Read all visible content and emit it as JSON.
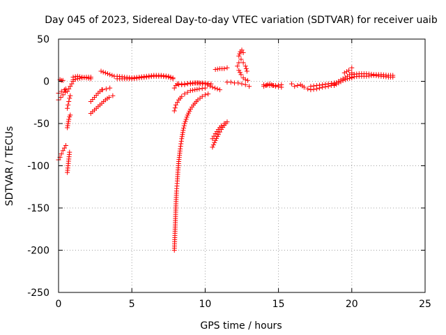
{
  "chart_data": {
    "type": "scatter",
    "title": "Day 045 of 2023, Sidereal Day-to-day VTEC variation (SDTVAR) for receiver uaib",
    "xlabel": "GPS time / hours",
    "ylabel": "SDTVAR / TECUs",
    "xlim": [
      0,
      25
    ],
    "ylim": [
      -250,
      50
    ],
    "xticks": [
      0,
      5,
      10,
      15,
      20,
      25
    ],
    "yticks": [
      -250,
      -200,
      -150,
      -100,
      -50,
      0,
      50
    ],
    "grid": true,
    "marker": "+",
    "color": "#ff0000",
    "series": [
      {
        "name": "SDTVAR",
        "segments": [
          {
            "x": [
              0.0,
              0.1,
              0.2,
              0.3,
              0.4,
              0.5
            ],
            "y": [
              -93,
              -90,
              -86,
              -82,
              -79,
              -76
            ]
          },
          {
            "x": [
              0.0,
              0.15,
              0.3,
              0.45
            ],
            "y": [
              -22,
              -19,
              -16,
              -13
            ]
          },
          {
            "x": [
              0.0,
              0.2,
              0.4,
              0.5
            ],
            "y": [
              -14,
              -12,
              -10,
              -9
            ]
          },
          {
            "x": [
              0.1,
              0.2,
              0.3
            ],
            "y": [
              2,
              1,
              1
            ]
          },
          {
            "x": [
              0.6,
              0.65,
              0.7,
              0.75
            ],
            "y": [
              -108,
              -100,
              -92,
              -84
            ]
          },
          {
            "x": [
              0.6,
              0.65,
              0.7,
              0.75,
              0.8
            ],
            "y": [
              -55,
              -50,
              -45,
              -42,
              -40
            ]
          },
          {
            "x": [
              0.6,
              0.65,
              0.7,
              0.75,
              0.8
            ],
            "y": [
              -32,
              -28,
              -24,
              -20,
              -17
            ]
          },
          {
            "x": [
              0.6,
              0.7,
              0.8,
              0.9,
              1.0
            ],
            "y": [
              -12,
              -9,
              -6,
              -3,
              0
            ]
          },
          {
            "x": [
              1.0,
              1.3,
              1.6,
              1.9,
              2.2
            ],
            "y": [
              2,
              3,
              4,
              5,
              5
            ]
          },
          {
            "x": [
              1.0,
              1.3,
              1.6,
              1.9,
              2.2
            ],
            "y": [
              5,
              6,
              5,
              4,
              3
            ]
          },
          {
            "x": [
              2.2,
              2.45,
              2.7,
              2.95,
              3.2,
              3.45,
              3.7
            ],
            "y": [
              -38,
              -34,
              -30,
              -26,
              -22,
              -19,
              -17
            ]
          },
          {
            "x": [
              2.2,
              2.45,
              2.7,
              2.95
            ],
            "y": [
              -24,
              -19,
              -14,
              -10
            ]
          },
          {
            "x": [
              2.9,
              3.2,
              3.5,
              3.8
            ],
            "y": [
              12,
              10,
              8,
              6
            ]
          },
          {
            "x": [
              3.0,
              3.25,
              3.5
            ],
            "y": [
              -10,
              -9,
              -8
            ]
          },
          {
            "x": [
              4.0,
              4.5,
              5.0,
              5.5,
              6.0,
              6.5,
              7.0,
              7.5,
              7.8
            ],
            "y": [
              3,
              3,
              3,
              4,
              5,
              6,
              6,
              5,
              3
            ]
          },
          {
            "x": [
              4.0,
              4.5,
              5.0,
              5.5,
              6.0,
              6.5,
              7.0,
              7.5,
              7.8
            ],
            "y": [
              6,
              5,
              4,
              5,
              6,
              7,
              7,
              6,
              4
            ]
          },
          {
            "x": [
              7.9,
              7.92,
              7.95,
              7.98,
              8.0,
              8.02,
              8.05,
              8.1,
              8.15,
              8.2,
              8.3,
              8.4,
              8.5,
              8.6,
              8.8,
              9.0,
              9.2,
              9.5,
              9.8,
              10.0,
              10.2
            ],
            "y": [
              -200,
              -190,
              -175,
              -160,
              -150,
              -140,
              -130,
              -118,
              -105,
              -95,
              -80,
              -68,
              -58,
              -50,
              -40,
              -33,
              -28,
              -22,
              -18,
              -16,
              -15
            ]
          },
          {
            "x": [
              7.9,
              8.0,
              8.2,
              8.4,
              8.6,
              8.8,
              9.0,
              9.3,
              9.6,
              10.0
            ],
            "y": [
              -35,
              -28,
              -22,
              -18,
              -15,
              -13,
              -11,
              -10,
              -9,
              -8
            ]
          },
          {
            "x": [
              7.9,
              8.0,
              8.1,
              8.2,
              8.4,
              8.6,
              8.8,
              9.0,
              9.3,
              9.6,
              10.0,
              10.4
            ],
            "y": [
              -8,
              -5,
              -3,
              -3,
              -4,
              -4,
              -3,
              -3,
              -2,
              -2,
              -2,
              -3
            ]
          },
          {
            "x": [
              8.2,
              8.6,
              9.0,
              9.5,
              10.0,
              10.5,
              11.0
            ],
            "y": [
              -4,
              -3,
              -2,
              -2,
              -3,
              -7,
              -10
            ]
          },
          {
            "x": [
              10.5,
              10.7,
              10.9,
              11.1,
              11.3,
              11.5
            ],
            "y": [
              -78,
              -70,
              -63,
              -57,
              -52,
              -48
            ]
          },
          {
            "x": [
              10.5,
              10.7,
              10.9,
              11.1,
              11.3
            ],
            "y": [
              -68,
              -62,
              -57,
              -53,
              -50
            ]
          },
          {
            "x": [
              10.7,
              11.0,
              11.3,
              11.5
            ],
            "y": [
              14,
              15,
              15,
              16
            ]
          },
          {
            "x": [
              11.5,
              11.75,
              12.0,
              12.25,
              12.5,
              12.75,
              13.0
            ],
            "y": [
              -1,
              -1,
              -2,
              -2,
              -3,
              -4,
              -6
            ]
          },
          {
            "x": [
              12.2,
              12.3,
              12.45,
              12.6,
              12.75,
              12.85
            ],
            "y": [
              18,
              22,
              26,
              22,
              18,
              12
            ]
          },
          {
            "x": [
              12.3,
              12.4,
              12.5,
              12.6
            ],
            "y": [
              30,
              35,
              37,
              34
            ]
          },
          {
            "x": [
              12.3,
              12.45,
              12.6,
              12.75,
              12.9
            ],
            "y": [
              13,
              8,
              4,
              2,
              1
            ]
          },
          {
            "x": [
              14.0,
              14.4,
              14.8,
              15.2
            ],
            "y": [
              -4,
              -5,
              -5,
              -4
            ]
          },
          {
            "x": [
              14.0,
              14.4,
              14.8,
              15.2
            ],
            "y": [
              -6,
              -3,
              -6,
              -7
            ]
          },
          {
            "x": [
              15.9,
              16.1,
              16.3
            ],
            "y": [
              -3,
              -6,
              -5
            ]
          },
          {
            "x": [
              16.5,
              16.75,
              17.0
            ],
            "y": [
              -4,
              -7,
              -9
            ]
          },
          {
            "x": [
              17.2,
              17.6,
              18.0,
              18.4,
              18.8
            ],
            "y": [
              -6,
              -5,
              -4,
              -3,
              -2
            ]
          },
          {
            "x": [
              17.2,
              17.6,
              18.0,
              18.4,
              18.8
            ],
            "y": [
              -10,
              -9,
              -7,
              -6,
              -4
            ]
          },
          {
            "x": [
              18.8,
              19.1,
              19.4,
              19.7,
              20.0
            ],
            "y": [
              -3,
              0,
              3,
              6,
              10
            ]
          },
          {
            "x": [
              18.8,
              19.1,
              19.4,
              19.7,
              20.0
            ],
            "y": [
              -5,
              -2,
              1,
              3,
              4
            ]
          },
          {
            "x": [
              19.5,
              19.8,
              20.0
            ],
            "y": [
              10,
              13,
              16
            ]
          },
          {
            "x": [
              20.0,
              20.5,
              21.0,
              21.5,
              22.0,
              22.5,
              22.8
            ],
            "y": [
              8,
              9,
              9,
              8,
              8,
              7,
              7
            ]
          },
          {
            "x": [
              20.0,
              20.5,
              21.0,
              21.5,
              22.0,
              22.5,
              22.8
            ],
            "y": [
              5,
              6,
              6,
              7,
              6,
              5,
              5
            ]
          }
        ]
      }
    ]
  }
}
